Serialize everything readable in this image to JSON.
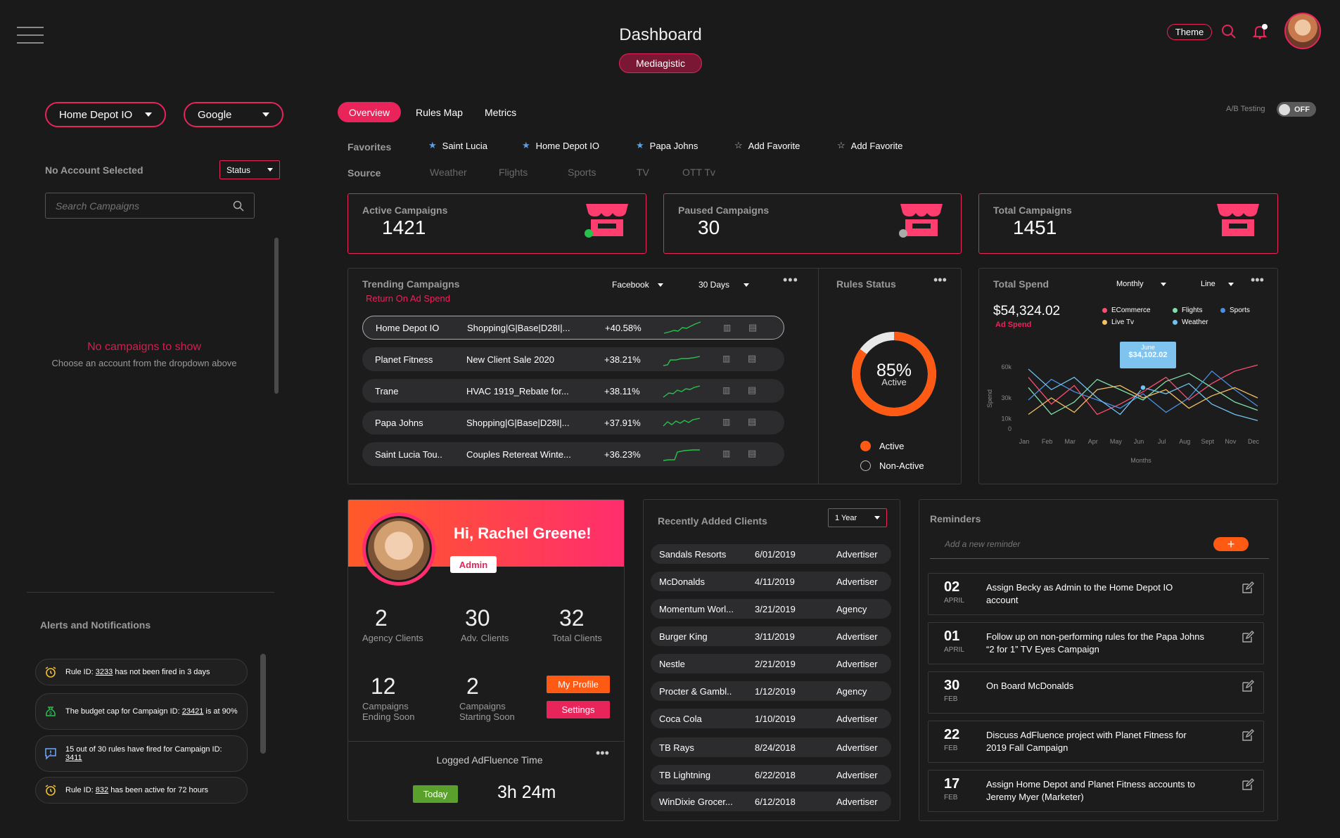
{
  "header": {
    "title": "Dashboard",
    "org": "Mediagistic",
    "theme_label": "Theme"
  },
  "left": {
    "account_dropdown": "Home Depot IO",
    "platform_dropdown": "Google",
    "no_account": "No Account Selected",
    "status_dropdown": "Status",
    "search_placeholder": "Search Campaigns",
    "empty_title": "No campaigns to show",
    "empty_sub": "Choose an account from the dropdown above",
    "alerts_title": "Alerts and Notifications",
    "alerts": [
      {
        "pre": "Rule ID: ",
        "id": "3233",
        "post": " has not been fired in 3 days",
        "icon": "alarm-icon"
      },
      {
        "pre": "The budget cap for Campaign ID: ",
        "id": "23421",
        "post": " is at 90%",
        "icon": "money-bag-icon"
      },
      {
        "pre": "15 out of 30 rules have fired for Campaign ID: ",
        "id": "3411",
        "post": "",
        "icon": "message-alert-icon"
      },
      {
        "pre": "Rule ID: ",
        "id": "832",
        "post": " has been active for 72 hours",
        "icon": "alarm-icon"
      }
    ]
  },
  "tabs": {
    "overview": "Overview",
    "rules_map": "Rules Map",
    "metrics": "Metrics"
  },
  "ab_testing": {
    "label": "A/B Testing",
    "state": "OFF"
  },
  "favorites": {
    "label": "Favorites",
    "items": [
      "Saint Lucia",
      "Home Depot IO",
      "Papa Johns"
    ],
    "add1": "Add Favorite",
    "add2": "Add Favorite"
  },
  "source": {
    "label": "Source",
    "items": [
      "Weather",
      "Flights",
      "Sports",
      "TV",
      "OTT Tv"
    ]
  },
  "kpis": [
    {
      "label": "Active Campaigns",
      "value": "1421"
    },
    {
      "label": "Paused Campaigns",
      "value": "30"
    },
    {
      "label": "Total Campaigns",
      "value": "1451"
    }
  ],
  "trending": {
    "title": "Trending Campaigns",
    "subtitle": "Return On Ad Spend",
    "platform": "Facebook",
    "range": "30 Days",
    "rows": [
      {
        "name": "Home Depot IO",
        "campaign": "Shopping|G|Base|D28I|...",
        "pct": "+40.58%"
      },
      {
        "name": "Planet Fitness",
        "campaign": "New Client Sale 2020",
        "pct": "+38.21%"
      },
      {
        "name": "Trane",
        "campaign": "HVAC 1919_Rebate for...",
        "pct": "+38.11%"
      },
      {
        "name": "Papa Johns",
        "campaign": "Shopping|G|Base|D28I|...",
        "pct": "+37.91%"
      },
      {
        "name": "Saint Lucia Tou..",
        "campaign": "Couples Retereat Winte...",
        "pct": "+36.23%"
      }
    ]
  },
  "rules_status": {
    "title": "Rules Status",
    "pct": "85%",
    "pct_value": 85,
    "center_label": "Active",
    "legend_active": "Active",
    "legend_inactive": "Non-Active",
    "color_active": "#ff5a14",
    "color_inactive": "#e8e8e8"
  },
  "total_spend": {
    "title": "Total Spend",
    "period": "Monthly",
    "chart_type_label": "Line",
    "amount": "$54,324.02",
    "amount_label": "Ad Spend",
    "tooltip_month": "June",
    "tooltip_value": "$34,102.02"
  },
  "chart_data": {
    "type": "line",
    "ylabel": "Spend",
    "xlabel": "Months",
    "categories": [
      "Jan",
      "Feb",
      "Mar",
      "Apr",
      "May",
      "Jun",
      "Jul",
      "Aug",
      "Sept",
      "Nov",
      "Dec"
    ],
    "yticks": [
      "60k",
      "30k",
      "10k",
      "0"
    ],
    "ylim": [
      0,
      60000
    ],
    "legend": "top",
    "series": [
      {
        "name": "ECommerce",
        "color": "#ff4d6d",
        "values": [
          50000,
          24000,
          42000,
          14000,
          24000,
          36000,
          50000,
          28000,
          44000,
          56000,
          62000
        ]
      },
      {
        "name": "Flights",
        "color": "#7fe0a8",
        "values": [
          40000,
          14000,
          26000,
          48000,
          38000,
          28000,
          46000,
          54000,
          40000,
          26000,
          18000
        ]
      },
      {
        "name": "Sports",
        "color": "#4a90e2",
        "values": [
          28000,
          48000,
          36000,
          28000,
          20000,
          34000,
          16000,
          30000,
          56000,
          38000,
          22000
        ]
      },
      {
        "name": "Live Tv",
        "color": "#f5c060",
        "values": [
          14000,
          30000,
          16000,
          38000,
          42000,
          30000,
          38000,
          20000,
          32000,
          40000,
          30000
        ]
      },
      {
        "name": "Weather",
        "color": "#6fc3f0",
        "values": [
          58000,
          38000,
          50000,
          30000,
          14000,
          40000,
          34000,
          44000,
          24000,
          14000,
          8000
        ]
      }
    ]
  },
  "profile": {
    "greeting": "Hi, Rachel Greene!",
    "role": "Admin",
    "stats": [
      {
        "n": "2",
        "l": "Agency Clients"
      },
      {
        "n": "30",
        "l": "Adv. Clients"
      },
      {
        "n": "32",
        "l": "Total Clients"
      },
      {
        "n": "12",
        "l": "Campaigns Ending Soon"
      },
      {
        "n": "2",
        "l": "Campaigns Starting Soon"
      }
    ],
    "my_profile": "My Profile",
    "settings": "Settings",
    "logged_title": "Logged AdFluence Time",
    "today": "Today",
    "time": "3h 24m"
  },
  "clients": {
    "title": "Recently Added Clients",
    "range": "1 Year",
    "rows": [
      {
        "name": "Sandals Resorts",
        "date": "6/01/2019",
        "type": "Advertiser"
      },
      {
        "name": "McDonalds",
        "date": "4/11/2019",
        "type": "Advertiser"
      },
      {
        "name": "Momentum Worl...",
        "date": "3/21/2019",
        "type": "Agency"
      },
      {
        "name": "Burger King",
        "date": "3/11/2019",
        "type": "Advertiser"
      },
      {
        "name": "Nestle",
        "date": "2/21/2019",
        "type": "Advertiser"
      },
      {
        "name": "Procter & Gambl..",
        "date": "1/12/2019",
        "type": "Agency"
      },
      {
        "name": "Coca Cola",
        "date": "1/10/2019",
        "type": "Advertiser"
      },
      {
        "name": "TB Rays",
        "date": "8/24/2018",
        "type": "Advertiser"
      },
      {
        "name": "TB Lightning",
        "date": "6/22/2018",
        "type": "Advertiser"
      },
      {
        "name": "WinDixie Grocer...",
        "date": "6/12/2018",
        "type": "Advertiser"
      }
    ]
  },
  "reminders": {
    "title": "Reminders",
    "placeholder": "Add a new reminder",
    "items": [
      {
        "day": "02",
        "month": "APRIL",
        "text": "Assign Becky as Admin to the Home Depot IO account"
      },
      {
        "day": "01",
        "month": "APRIL",
        "text": "Follow up on non-performing rules for the Papa Johns “2 for 1” TV Eyes Campaign"
      },
      {
        "day": "30",
        "month": "FEB",
        "text": "On Board McDonalds"
      },
      {
        "day": "22",
        "month": "FEB",
        "text": "Discuss AdFluence project with Planet Fitness for 2019 Fall Campaign"
      },
      {
        "day": "17",
        "month": "FEB",
        "text": "Assign Home Depot and Planet Fitness accounts to Jeremy Myer (Marketer)"
      }
    ]
  },
  "colors": {
    "accent": "#e8245a",
    "orange": "#ff5a14",
    "green": "#27c24c",
    "bg": "#1a1a1b"
  }
}
